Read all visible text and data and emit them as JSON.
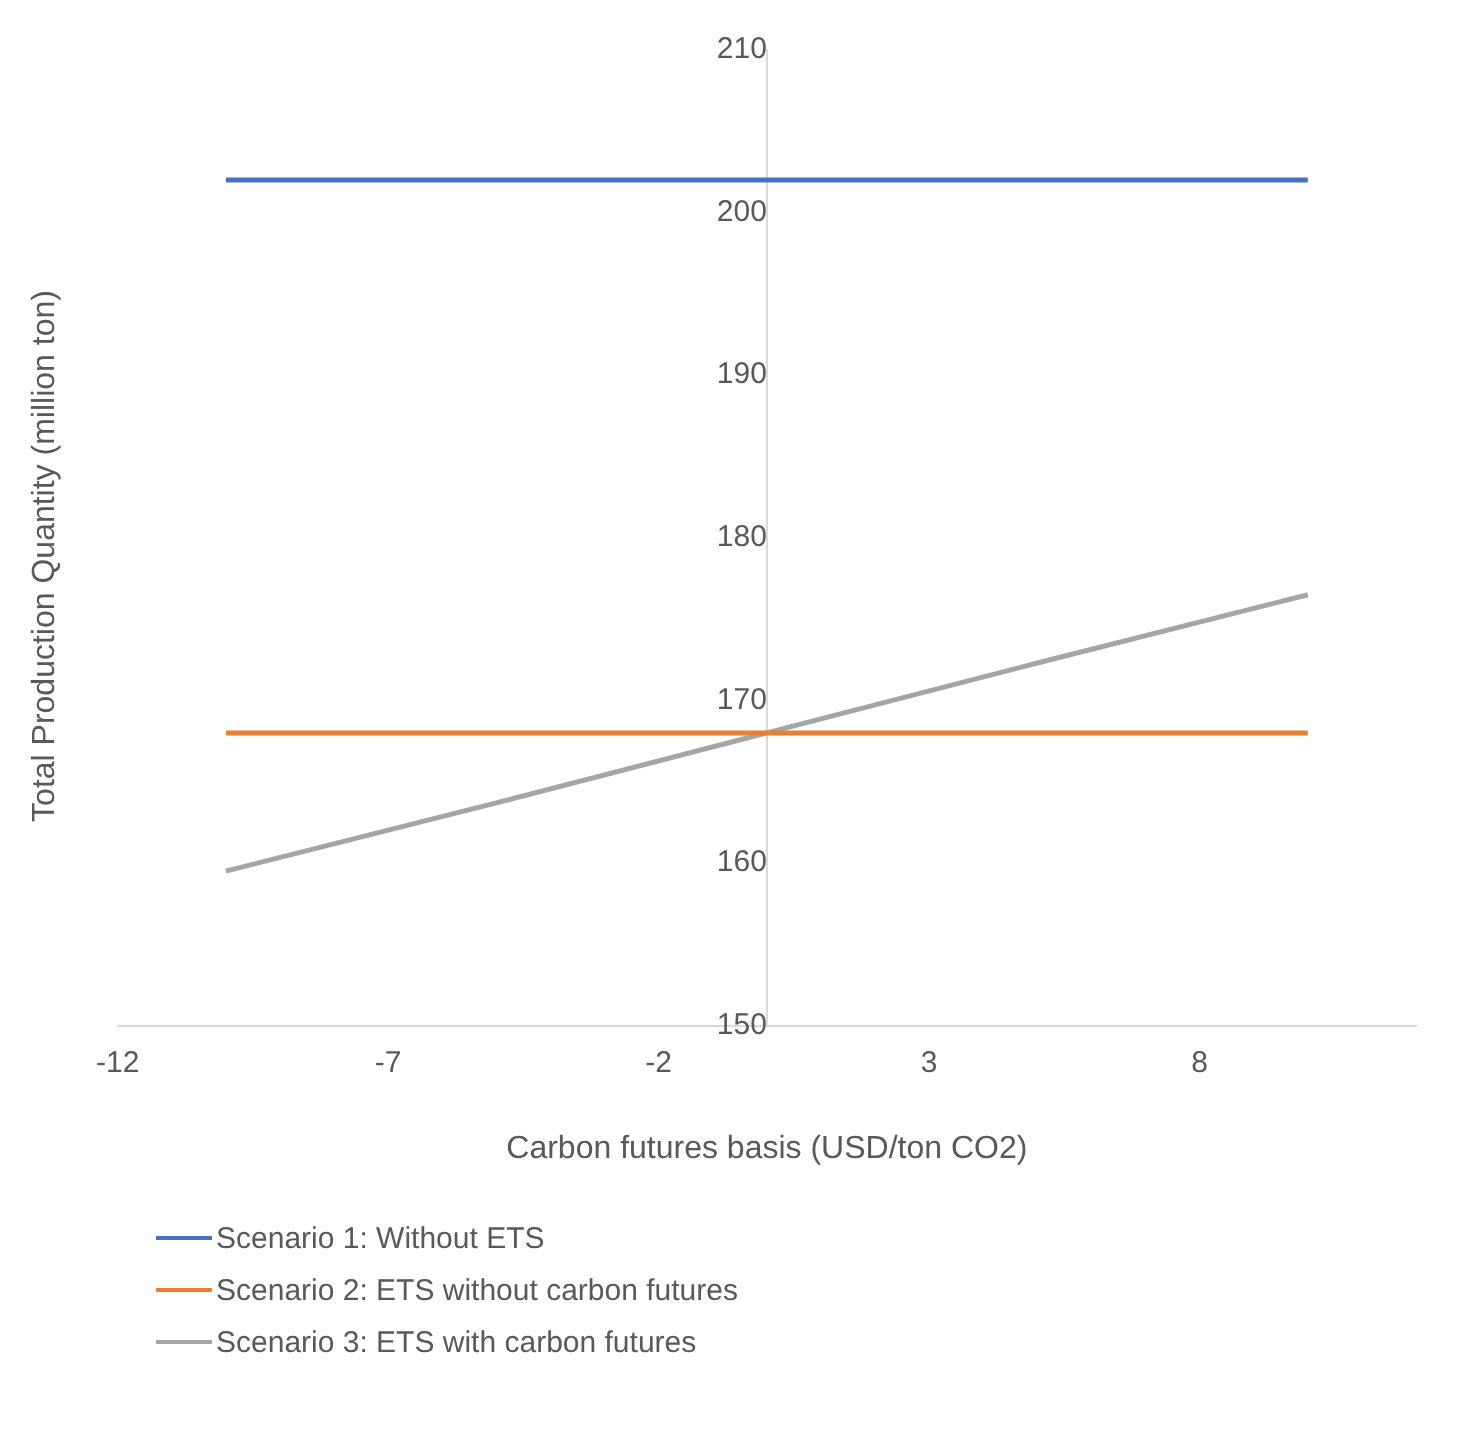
{
  "chart_data": {
    "type": "line",
    "xlabel": "Carbon futures basis (USD/ton CO2)",
    "ylabel": "Total Production Quantity (million ton)",
    "x": [
      -10,
      -5,
      0,
      5,
      10
    ],
    "series": [
      {
        "name": "Scenario 1: Without ETS",
        "color": "#4472c4",
        "values": [
          202,
          202,
          202,
          202,
          202
        ]
      },
      {
        "name": "Scenario 2: ETS without carbon futures",
        "color": "#ed7d31",
        "values": [
          168,
          168,
          168,
          168,
          168
        ]
      },
      {
        "name": "Scenario 3: ETS with carbon futures",
        "color": "#a5a5a5",
        "values": [
          159.5,
          163.7,
          168,
          172.3,
          176.5
        ]
      }
    ],
    "xlim": [
      -12,
      12
    ],
    "xticks": [
      -12,
      -7,
      -2,
      3,
      8
    ],
    "ylim": [
      150,
      210
    ],
    "yticks": [
      150,
      160,
      170,
      180,
      190,
      200,
      210
    ],
    "grid": false,
    "legend": "bottom",
    "marker": "none",
    "line_style": "solid"
  }
}
